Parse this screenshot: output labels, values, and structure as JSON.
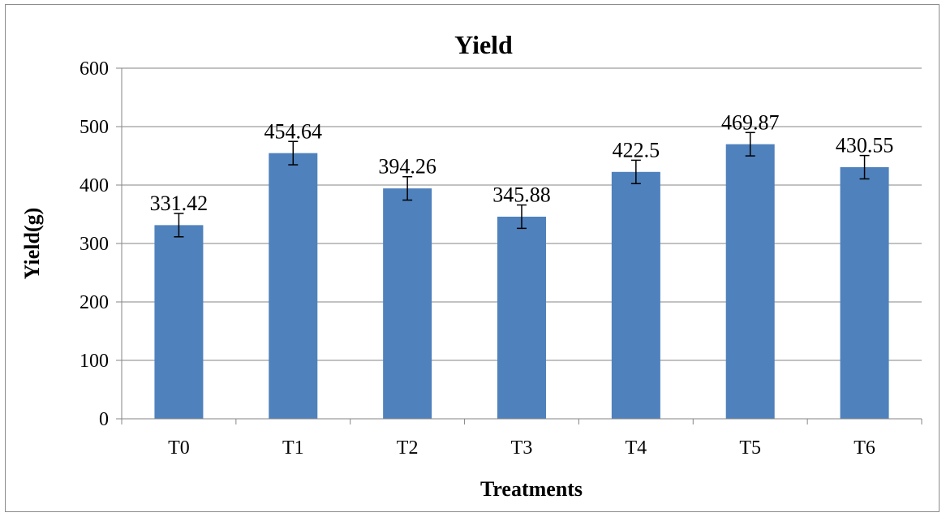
{
  "chart_data": {
    "type": "bar",
    "title": "Yield",
    "xlabel": "Treatments",
    "ylabel": "Yield(g)",
    "categories": [
      "T0",
      "T1",
      "T2",
      "T3",
      "T4",
      "T5",
      "T6"
    ],
    "values": [
      331.42,
      454.64,
      394.26,
      345.88,
      422.5,
      469.87,
      430.55
    ],
    "data_labels": [
      "331.42",
      "454.64",
      "394.26",
      "345.88",
      "422.5",
      "469.87",
      "430.55"
    ],
    "error_bars": [
      20,
      20,
      20,
      20,
      20,
      20,
      20
    ],
    "ylim": [
      0,
      600
    ],
    "yticks": [
      0,
      100,
      200,
      300,
      400,
      500,
      600
    ],
    "grid": true,
    "legend": "none",
    "colors": {
      "bar": "#4f81bd",
      "grid": "#868686",
      "axis": "#868686",
      "error": "#000000"
    }
  }
}
